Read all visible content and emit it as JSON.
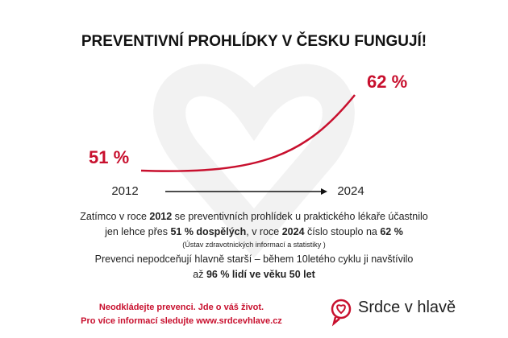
{
  "chart_data": {
    "type": "line",
    "title": "PREVENTIVNÍ PROHLÍDKY V ČESKU FUNGUJÍ!",
    "x": [
      "2012",
      "2024"
    ],
    "values": [
      51,
      62
    ],
    "value_labels": [
      "51 %",
      "62 %"
    ],
    "color": "#c8102e"
  },
  "text": {
    "lines": [
      [
        "Zatímco v roce ",
        "2012",
        " se preventivních prohlídek u praktického lékaře účastnilo"
      ],
      [
        "jen lehce přes ",
        "51 % dospělých",
        ", v roce ",
        "2024",
        " číslo stouplo na ",
        "62 %"
      ],
      [
        "(Ústav zdravotnických informací a statistiky )"
      ],
      [
        "Prevenci nepodceňují hlavně starší – během 10letého cyklu ji navštívilo"
      ],
      [
        "až ",
        "96 % lidí ve věku 50 let"
      ]
    ],
    "footer": [
      "Neodkládejte prevenci. Jde o váš život.",
      "Pro více informací sledujte www.srdcevhlave.cz"
    ],
    "logo": "Srdce v hlavě"
  }
}
